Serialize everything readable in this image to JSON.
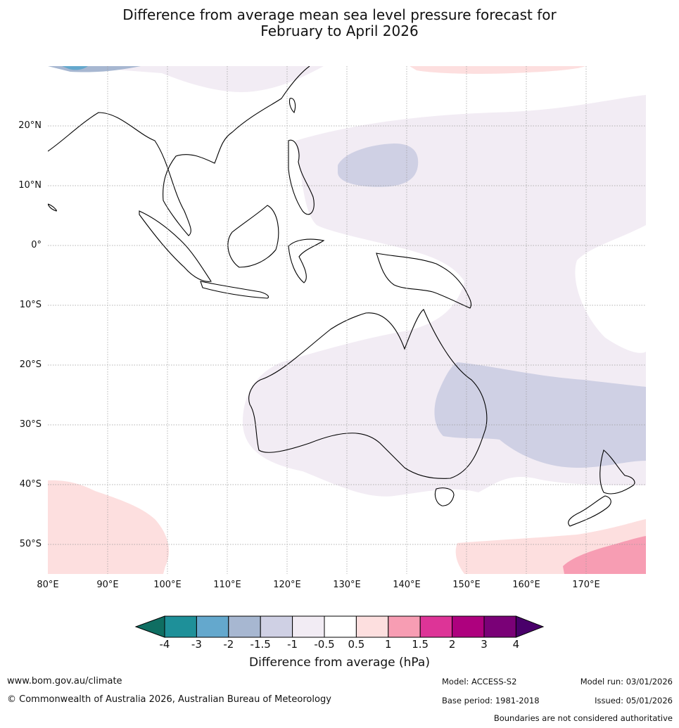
{
  "title_line1": "Difference from average mean sea level pressure forecast for",
  "title_line2": "February to April 2026",
  "lat_labels": [
    "20°N",
    "10°N",
    "0°",
    "10°S",
    "20°S",
    "30°S",
    "40°S",
    "50°S"
  ],
  "lon_labels": [
    "80°E",
    "90°E",
    "100°E",
    "110°E",
    "120°E",
    "130°E",
    "140°E",
    "150°E",
    "160°E",
    "170°E"
  ],
  "colorbar": {
    "ticks": [
      "-4",
      "-3",
      "-2",
      "-1.5",
      "-1",
      "-0.5",
      "0.5",
      "1",
      "1.5",
      "2",
      "3",
      "4"
    ],
    "colors": [
      "#0f6e62",
      "#1e9099",
      "#64a8cd",
      "#a7b7d1",
      "#cfd0e4",
      "#f2ecf4",
      "#ffffff",
      "#fddfdf",
      "#f79db3",
      "#dd3497",
      "#ae017e",
      "#7a0177",
      "#49006a"
    ],
    "title": "Difference from average (hPa)"
  },
  "footer": {
    "website": "www.bom.gov.au/climate",
    "copyright": "© Commonwealth of Australia 2026, Australian Bureau of Meteorology",
    "model": "Model: ACCESS-S2",
    "base_period": "Base period: 1981-2018",
    "model_run": "Model run: 03/01/2026",
    "issued": "Issued: 05/01/2026",
    "disclaimer": "Boundaries are not considered authoritative"
  }
}
